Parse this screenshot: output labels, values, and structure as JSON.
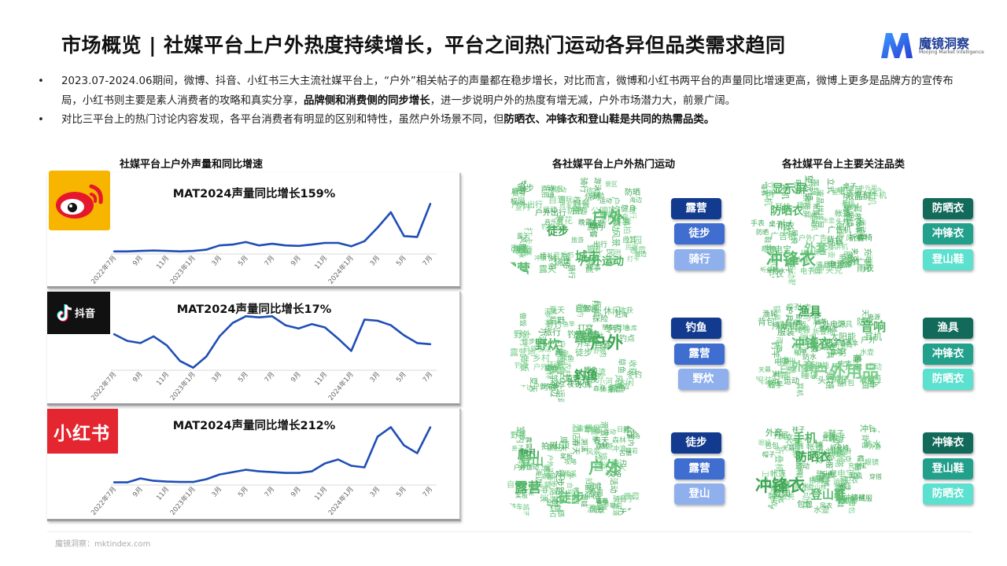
{
  "header": {
    "title": "市场概览 | 社媒平台上户外热度持续增长，平台之间热门运动各异但品类需求趋同",
    "logo_name": "魔镜洞察",
    "logo_sub": "Moojing Market Intelligence"
  },
  "bullets": [
    {
      "pre": "2023.07-2024.06期间，微博、抖音、小红书三大主流社媒平台上，“户外”相关帖子的声量都在稳步增长，对比而言，微博和小红书两平台的声量同比增速更高，微博上更多是品牌方的宣传布局，小红书则主要是素人消费者的攻略和真实分享，",
      "bold": "品牌侧和消费侧的同步增长",
      "post": "，进一步说明户外的热度有增无减，户外市场潜力大，前景广阔。"
    },
    {
      "pre": "对比三平台上的热门讨论内容发现，各平台消费者有明显的区别和特性，虽然户外场景不同，但",
      "bold": "防晒衣、冲锋衣和登山鞋是共同的热需品类。",
      "post": ""
    }
  ],
  "sections": {
    "charts_heading": "社媒平台上户外声量和同比增速",
    "sports_heading": "各社媒平台上户外热门运动",
    "categories_heading": "各社媒平台上主要关注品类"
  },
  "brands": {
    "douyin": "抖音",
    "xiaohongshu": "小红书"
  },
  "chart_data": [
    {
      "type": "line",
      "platform": "weibo",
      "title": "MAT2024声量同比增长159%",
      "x": [
        "2022年7月",
        "8月",
        "9月",
        "10月",
        "11月",
        "12月",
        "2023年1月",
        "2月",
        "3月",
        "4月",
        "5月",
        "6月",
        "7月",
        "8月",
        "9月",
        "10月",
        "11月",
        "12月",
        "2024年1月",
        "2月",
        "3月",
        "4月",
        "5月",
        "6月",
        "7月"
      ],
      "tick_labels": [
        "2022年7月",
        "9月",
        "11月",
        "2023年1月",
        "3月",
        "5月",
        "7月",
        "9月",
        "11月",
        "2024年1月",
        "3月",
        "5月",
        "7月"
      ],
      "values": [
        2,
        2,
        2.5,
        3,
        2.5,
        2,
        2.5,
        4,
        9,
        10,
        13,
        9,
        11,
        9,
        8.5,
        10,
        12,
        12,
        8,
        14,
        30,
        48,
        20,
        19,
        58
      ],
      "color": "#1f4eb5"
    },
    {
      "type": "line",
      "platform": "douyin",
      "title": "MAT2024声量同比增长17%",
      "x": [
        "2022年7月",
        "8月",
        "9月",
        "10月",
        "11月",
        "12月",
        "2023年1月",
        "2月",
        "3月",
        "4月",
        "5月",
        "6月",
        "7月",
        "8月",
        "9月",
        "10月",
        "11月",
        "12月",
        "2024年1月",
        "2月",
        "3月",
        "4月",
        "5月",
        "6月",
        "7月"
      ],
      "tick_labels": [
        "2022年7月",
        "9月",
        "11月",
        "2023年1月",
        "3月",
        "5月",
        "7月",
        "9月",
        "11月",
        "2024年1月",
        "3月",
        "5月",
        "7月"
      ],
      "values": [
        56,
        50,
        48,
        54,
        46,
        32,
        26,
        36,
        54,
        66,
        72,
        71,
        72,
        64,
        61,
        65,
        62,
        52,
        41,
        69,
        68,
        64,
        55,
        48,
        47
      ],
      "color": "#1f4eb5"
    },
    {
      "type": "line",
      "platform": "xiaohongshu",
      "title": "MAT2024声量同比增长212%",
      "x": [
        "2022年7月",
        "8月",
        "9月",
        "10月",
        "11月",
        "12月",
        "2023年1月",
        "2月",
        "3月",
        "4月",
        "5月",
        "6月",
        "7月",
        "8月",
        "9月",
        "10月",
        "11月",
        "12月",
        "2024年1月",
        "2月",
        "3月",
        "4月",
        "5月",
        "6月",
        "7月"
      ],
      "tick_labels": [
        "2022年7月",
        "9月",
        "11月",
        "2023年1月",
        "3月",
        "5月",
        "7月",
        "9月",
        "11月",
        "2024年1月",
        "3月",
        "5月",
        "7月"
      ],
      "values": [
        5,
        5,
        10,
        7,
        6,
        5.5,
        5.5,
        9,
        15,
        18,
        21,
        19,
        18,
        17,
        17,
        19,
        29,
        34,
        26,
        24,
        63,
        75,
        52,
        42,
        75
      ],
      "color": "#1f4eb5"
    }
  ],
  "sports": [
    {
      "platform": "weibo",
      "items": [
        "露营",
        "徒步",
        "骑行"
      ]
    },
    {
      "platform": "douyin",
      "items": [
        "钓鱼",
        "露营",
        "野炊"
      ]
    },
    {
      "platform": "xiaohongshu",
      "items": [
        "徒步",
        "露营",
        "登山"
      ]
    }
  ],
  "categories": [
    {
      "platform": "weibo",
      "items": [
        "防晒衣",
        "冲锋衣",
        "登山鞋"
      ]
    },
    {
      "platform": "douyin",
      "items": [
        "渔具",
        "冲锋衣",
        "防晒衣"
      ]
    },
    {
      "platform": "xiaohongshu",
      "items": [
        "冲锋衣",
        "登山鞋",
        "防晒衣"
      ]
    }
  ],
  "colors": {
    "blue_levels": [
      "#123a8e",
      "#3f6ed0",
      "#8fb0ec"
    ],
    "teal_levels": [
      "#126a5a",
      "#22a08c",
      "#5ce0cf"
    ],
    "line": "#1f4eb5",
    "cloud_green": "#55b86a"
  },
  "wordclouds": {
    "sports": [
      {
        "big": [
          "户外",
          "露营",
          "户外运动",
          "徒步",
          "城市"
        ],
        "small": [
          "户外出行",
          "户外活动",
          "出游",
          "婚礼",
          "音乐节",
          "室内",
          "跑步",
          "钓鱼",
          "公园",
          "旅行",
          "校园",
          "游玩",
          "出门",
          "景区",
          "旅游",
          "出行",
          "骑行",
          "爬山",
          "通勤",
          "防晒",
          "运动",
          "健身",
          "赛事",
          "游泳",
          "民宿",
          "滑雪",
          "露天",
          "赏花",
          "自驾",
          "烧烤",
          "野餐",
          "冲浪",
          "风景",
          "周末",
          "攀岩",
          "航拍",
          "打卡",
          "晚霞",
          "海边",
          "山顶"
        ]
      },
      {
        "big": [
          "户外",
          "钓鱼",
          "露营",
          "野炊"
        ],
        "small": [
          "钓友",
          "鱼竿",
          "野钓",
          "户外生活",
          "农村",
          "爬山",
          "露营地",
          "徒步",
          "夜钓",
          "小河",
          "钓点",
          "乡村",
          "户外美食",
          "烤肉",
          "鱼塘",
          "冬钓",
          "赶海",
          "溪流",
          "野外",
          "做饭",
          "开车",
          "水库",
          "森林",
          "荒野",
          "探险",
          "打野",
          "江边",
          "夏天",
          "湖边",
          "抓鱼",
          "收获",
          "鲫鱼",
          "草鱼",
          "打窝",
          "风景",
          "休闲",
          "旅行",
          "自驾",
          "户外运动",
          "营地"
        ]
      },
      {
        "big": [
          "户外",
          "露营",
          "徒步",
          "爬山",
          "登山"
        ],
        "small": [
          "户外运动",
          "野餐",
          "室内",
          "风景",
          "酒店",
          "景区",
          "骑行",
          "户外活动",
          "跑步",
          "旅游",
          "攻略",
          "打卡",
          "周末",
          "城市",
          "公园",
          "亲子",
          "拍照",
          "日落",
          "山顶",
          "露营地",
          "徒步路线",
          "海边",
          "滑雪",
          "攀岩",
          "溯溪",
          "骑车",
          "帐篷",
          "天幕",
          "冲浪",
          "桨板",
          "飞盘",
          "自驾",
          "营地",
          "森林",
          "草地",
          "古镇",
          "溜娃",
          "秋天",
          "春天",
          "晚霞"
        ]
      }
    ],
    "categories": [
      {
        "big": [
          "冲锋衣",
          "防晒衣",
          "外套",
          "显示屏"
        ],
        "small": [
          "运动",
          "眼镜",
          "帐篷",
          "体机",
          "手机",
          "登山鞋",
          "充电宝",
          "液晶拼接屏",
          "拼接屏",
          "户外广告",
          "电子屏",
          "液晶屏",
          "广告机",
          "led",
          "立式",
          "背包",
          "防水",
          "运动鞋",
          "望远镜",
          "电源",
          "对讲机",
          "户外用品",
          "防晒",
          "鞋子",
          "帽子",
          "墨镜",
          "卫衣",
          "夹克",
          "手表",
          "耳机",
          "水壶",
          "服装",
          "冲锋裤",
          "风衣",
          "头灯",
          "雨衣",
          "睡袋",
          "折叠椅",
          "桌子",
          "灯"
        ]
      },
      {
        "big": [
          "户外用品",
          "渔具",
          "冲锋衣",
          "外套",
          "音响"
        ],
        "small": [
          "手机",
          "防晒衣",
          "户外",
          "登山",
          "帐篷",
          "钓竿",
          "鱼竿",
          "鱼线",
          "浮漂",
          "渔轮",
          "钓箱",
          "太阳能",
          "电源",
          "充电宝",
          "户外电源",
          "手电",
          "头灯",
          "背包",
          "鞋子",
          "运动",
          "服装",
          "夹克",
          "衣服",
          "裤子",
          "帽子",
          "眼镜",
          "耳机",
          "音箱",
          "灯",
          "折叠椅",
          "桌子",
          "炉具",
          "锅具",
          "水壶",
          "刀具",
          "睡袋",
          "天幕",
          "防水",
          "马甲",
          "雨衣"
        ]
      },
      {
        "big": [
          "冲锋衣",
          "登山鞋",
          "手机",
          "防晒衣"
        ],
        "small": [
          "户外",
          "外套",
          "运动",
          "帐篷",
          "防水",
          "背包",
          "鞋子",
          "登山",
          "衣服",
          "充电宝",
          "登山杖",
          "手表",
          "防晒",
          "墨镜",
          "帽子",
          "运动鞋",
          "徒步鞋",
          "软壳",
          "冲锋裤",
          "羽绒服",
          "抓绒",
          "速干衣",
          "打底",
          "袜子",
          "手套",
          "头灯",
          "水壶",
          "睡袋",
          "折叠椅",
          "天幕",
          "卫衣",
          "夹克",
          "风衣",
          "眼镜",
          "短裤",
          "耳机",
          "相机",
          "穿搭",
          "包包",
          "腰包"
        ]
      }
    ]
  },
  "footer": "魔镜洞察：mktindex.com"
}
